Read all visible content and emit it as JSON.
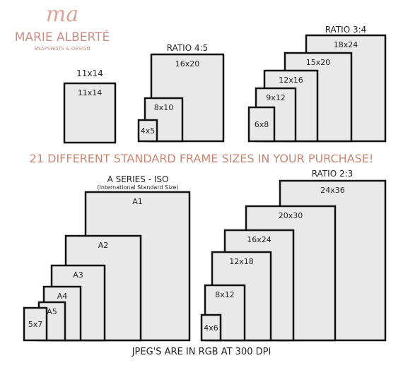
{
  "logo": {
    "monogram": "ma",
    "name": "MARIE ALBERTÉ",
    "tagline": "SNAPSHOTS & DESIGN"
  },
  "headline": "21 DIFFERENT STANDARD FRAME SIZES IN YOUR PURCHASE!",
  "footer": "JPEG'S ARE IN RGB AT 300 DPI",
  "groups": [
    {
      "title": "11x14",
      "frames": [
        {
          "label": "11x14"
        }
      ]
    },
    {
      "title": "RATIO 4:5",
      "frames": [
        {
          "label": "16x20"
        },
        {
          "label": "8x10"
        },
        {
          "label": "4x5"
        }
      ]
    },
    {
      "title": "RATIO 3:4",
      "frames": [
        {
          "label": "18x24"
        },
        {
          "label": "15x20"
        },
        {
          "label": "12x16"
        },
        {
          "label": "9x12"
        },
        {
          "label": "6x8"
        }
      ]
    },
    {
      "title": "A SERIES - ISO",
      "subtitle": "(International Standard Size)",
      "frames": [
        {
          "label": "A1"
        },
        {
          "label": "A2"
        },
        {
          "label": "A3"
        },
        {
          "label": "A4"
        },
        {
          "label": "A5"
        },
        {
          "label": "5x7"
        }
      ]
    },
    {
      "title": "RATIO 2:3",
      "frames": [
        {
          "label": "24x36"
        },
        {
          "label": "20x30"
        },
        {
          "label": "16x24"
        },
        {
          "label": "12x18"
        },
        {
          "label": "8x12"
        },
        {
          "label": "4x6"
        }
      ]
    }
  ]
}
